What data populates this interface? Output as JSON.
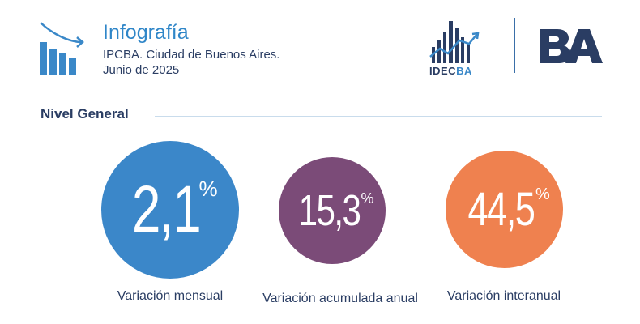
{
  "header": {
    "title": "Infografía",
    "subtitle_line1": "IPCBA. Ciudad de Buenos Aires.",
    "subtitle_line2": "Junio de 2025",
    "icon": "declining-bar-chart-icon"
  },
  "logos": {
    "idecba_prefix": "IDEC",
    "idecba_suffix": "BA",
    "ba_logo_text": "BA",
    "idecba_icon": "rising-skyline-chart-icon"
  },
  "section": {
    "title": "Nivel General"
  },
  "indicators": [
    {
      "value": "2,1",
      "unit": "%",
      "label": "Variación mensual",
      "color": "#3b87c9"
    },
    {
      "value": "15,3",
      "unit": "%",
      "label": "Variación acumulada anual",
      "color": "#7b4b78"
    },
    {
      "value": "44,5",
      "unit": "%",
      "label": "Variación interanual",
      "color": "#ef814f"
    }
  ],
  "colors": {
    "primary_blue": "#2f86c8",
    "navy": "#2a3d63"
  }
}
